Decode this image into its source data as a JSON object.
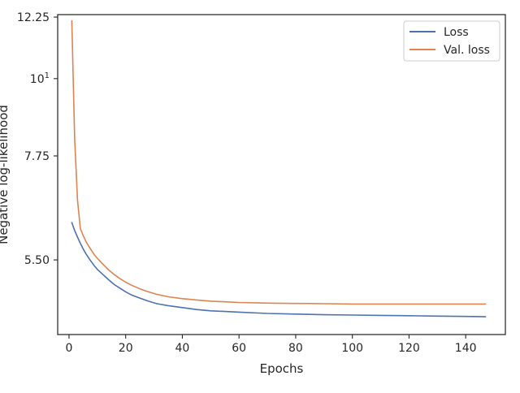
{
  "chart_data": {
    "type": "line",
    "title": "",
    "xlabel": "Epochs",
    "ylabel": "Negative log-likelihood",
    "y_scale": "log",
    "xlim": [
      -4,
      154
    ],
    "ylim": [
      4.3,
      12.35
    ],
    "x_ticks": [
      0,
      20,
      40,
      60,
      80,
      100,
      120,
      140
    ],
    "y_ticks": [
      {
        "value": 12.25,
        "label": "12.25"
      },
      {
        "value": 10,
        "label": "10",
        "sup": "1"
      },
      {
        "value": 7.75,
        "label": "7.75"
      },
      {
        "value": 5.5,
        "label": "5.50"
      }
    ],
    "grid": false,
    "legend_position": "upper right",
    "series": [
      {
        "name": "Loss",
        "color": "#4c72b0",
        "x": [
          1,
          2,
          3,
          4,
          5,
          6,
          7,
          8,
          9,
          10,
          12,
          14,
          16,
          18,
          20,
          22,
          25,
          28,
          31,
          35,
          40,
          45,
          50,
          55,
          60,
          70,
          80,
          90,
          100,
          110,
          120,
          130,
          140,
          147
        ],
        "y": [
          6.22,
          6.06,
          5.93,
          5.81,
          5.7,
          5.61,
          5.53,
          5.46,
          5.39,
          5.33,
          5.24,
          5.15,
          5.07,
          5.01,
          4.95,
          4.9,
          4.85,
          4.8,
          4.76,
          4.73,
          4.7,
          4.67,
          4.65,
          4.64,
          4.63,
          4.61,
          4.6,
          4.59,
          4.585,
          4.58,
          4.575,
          4.57,
          4.565,
          4.56
        ]
      },
      {
        "name": "Val. loss",
        "color": "#dd8452",
        "x": [
          1,
          2,
          3,
          4,
          5,
          6,
          7,
          8,
          9,
          10,
          12,
          14,
          16,
          18,
          20,
          22,
          25,
          28,
          31,
          35,
          40,
          45,
          50,
          55,
          60,
          70,
          80,
          90,
          100,
          110,
          120,
          130,
          140,
          147
        ],
        "y": [
          12.1,
          8.2,
          6.7,
          6.1,
          5.96,
          5.84,
          5.75,
          5.67,
          5.59,
          5.53,
          5.42,
          5.32,
          5.24,
          5.17,
          5.11,
          5.06,
          5.0,
          4.95,
          4.91,
          4.87,
          4.84,
          4.82,
          4.8,
          4.79,
          4.78,
          4.77,
          4.765,
          4.76,
          4.755,
          4.755,
          4.755,
          4.755,
          4.755,
          4.755
        ]
      }
    ]
  }
}
